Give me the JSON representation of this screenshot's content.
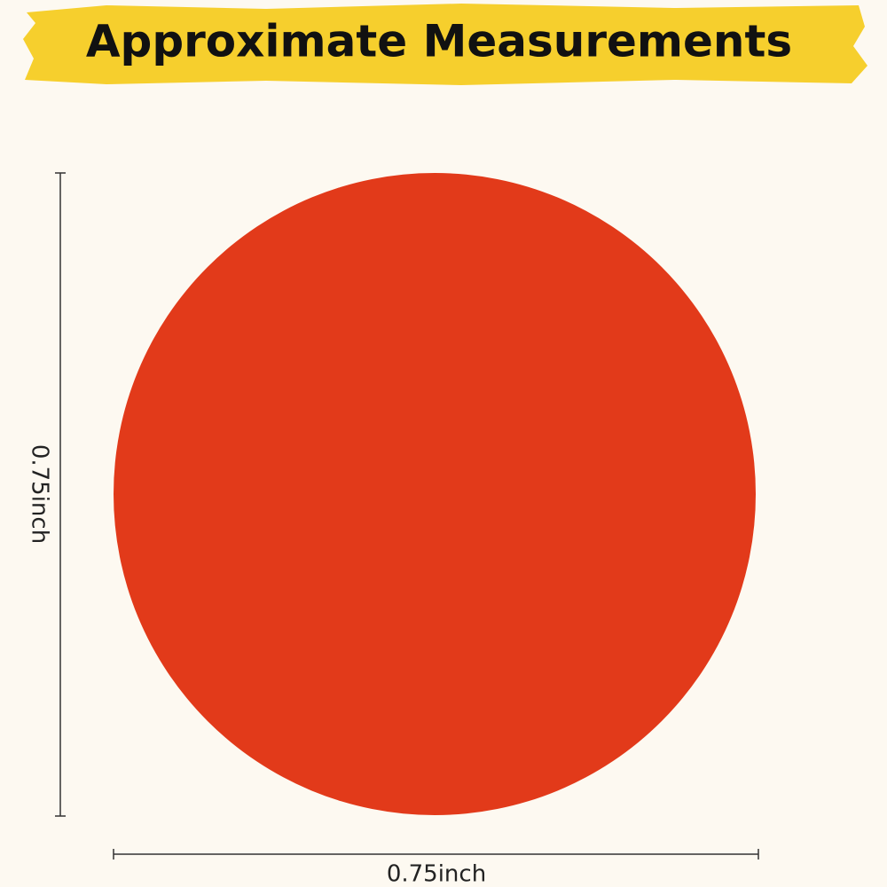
{
  "header": {
    "title": "Approximate Measurements"
  },
  "dimensions": {
    "height_label": "0.75inch",
    "width_label": "0.75inch"
  }
}
